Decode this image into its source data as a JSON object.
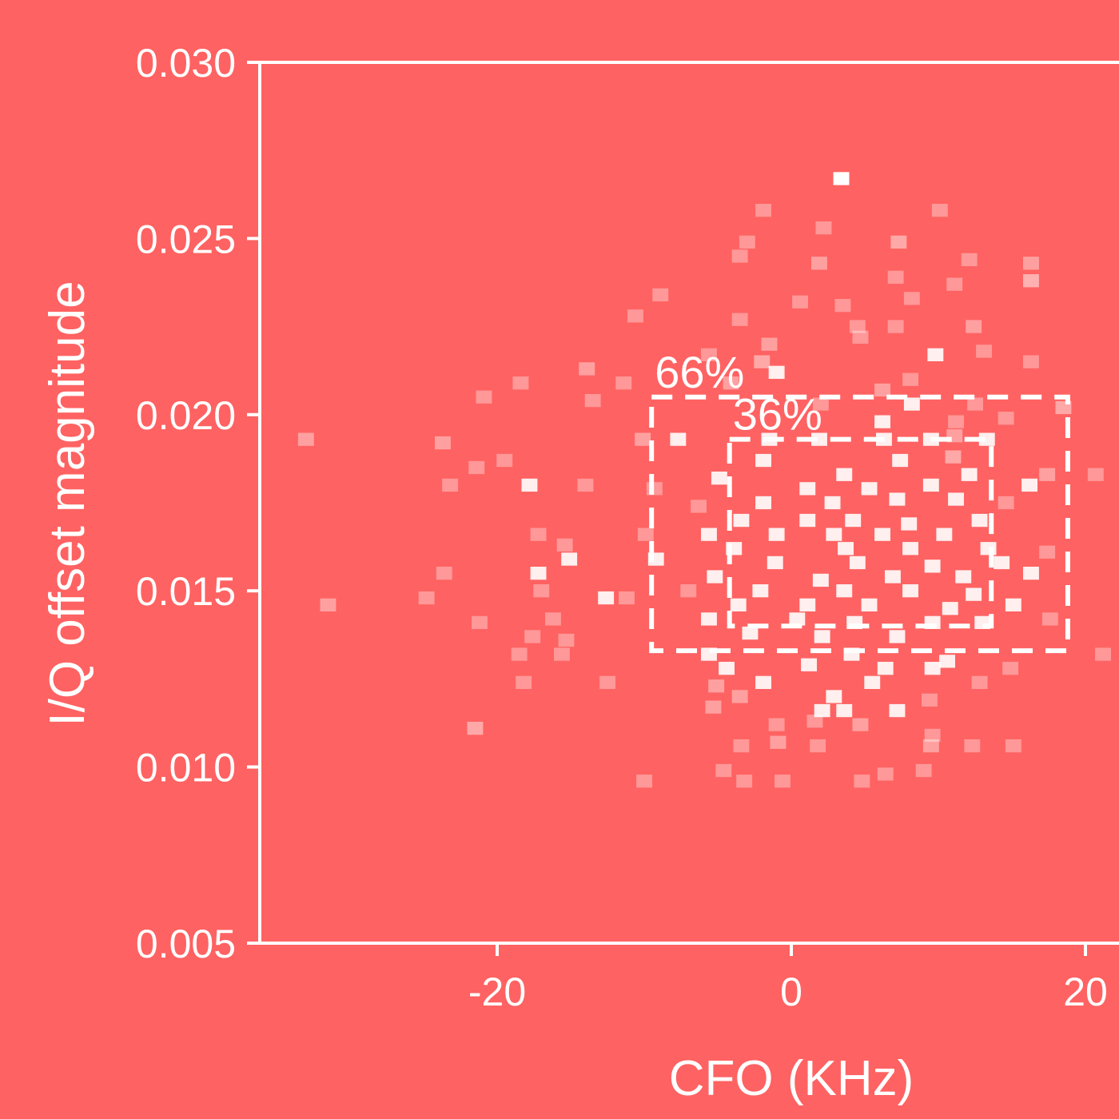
{
  "chart_data": {
    "type": "heatmap",
    "title": "",
    "xlabel": "CFO (KHz)",
    "ylabel": "I/Q offset magnitude",
    "xlim": [
      -33,
      23
    ],
    "ylim": [
      0.005,
      0.03
    ],
    "xticks": [
      -20,
      0,
      20
    ],
    "xtick_labels": [
      "-20",
      "0",
      "20"
    ],
    "yticks": [
      0.005,
      0.01,
      0.015,
      0.02,
      0.025,
      0.03
    ],
    "ytick_labels": [
      "0.005",
      "0.010",
      "0.015",
      "0.020",
      "0.025",
      "0.030"
    ],
    "grid": false,
    "colors": {
      "background": "#ff6262",
      "foreground": "#ffffff"
    },
    "regions": [
      {
        "label": "66%",
        "x": [
          -9.5,
          18.8
        ],
        "y": [
          0.0133,
          0.0205
        ]
      },
      {
        "label": "36%",
        "x": [
          -4.2,
          13.6
        ],
        "y": [
          0.014,
          0.0193
        ]
      }
    ],
    "bin_size": {
      "x": 1.08,
      "y": 0.00037
    },
    "points": [
      [
        3.4,
        0.0267,
        1.0
      ],
      [
        -33.0,
        0.0193,
        0.4
      ],
      [
        -31.5,
        0.0146,
        0.4
      ],
      [
        -1.9,
        0.0258,
        0.35
      ],
      [
        2.2,
        0.0253,
        0.35
      ],
      [
        10.1,
        0.0258,
        0.35
      ],
      [
        -3.0,
        0.0249,
        0.35
      ],
      [
        7.3,
        0.0249,
        0.45
      ],
      [
        -3.5,
        0.0245,
        0.35
      ],
      [
        1.9,
        0.0243,
        0.4
      ],
      [
        12.1,
        0.0244,
        0.35
      ],
      [
        16.3,
        0.0243,
        0.4
      ],
      [
        7.1,
        0.0239,
        0.35
      ],
      [
        11.1,
        0.0237,
        0.35
      ],
      [
        16.3,
        0.0238,
        0.5
      ],
      [
        -8.9,
        0.0234,
        0.35
      ],
      [
        0.6,
        0.0232,
        0.35
      ],
      [
        3.5,
        0.0231,
        0.35
      ],
      [
        8.2,
        0.0233,
        0.35
      ],
      [
        -10.6,
        0.0228,
        0.35
      ],
      [
        -3.5,
        0.0227,
        0.35
      ],
      [
        4.5,
        0.0225,
        0.35
      ],
      [
        7.1,
        0.0225,
        0.35
      ],
      [
        12.4,
        0.0225,
        0.4
      ],
      [
        -1.5,
        0.022,
        0.4
      ],
      [
        4.7,
        0.0222,
        0.35
      ],
      [
        -5.6,
        0.0217,
        0.35
      ],
      [
        -13.9,
        0.0213,
        0.4
      ],
      [
        -2.0,
        0.0215,
        0.45
      ],
      [
        9.8,
        0.0217,
        0.9
      ],
      [
        13.1,
        0.0218,
        0.35
      ],
      [
        16.3,
        0.0215,
        0.35
      ],
      [
        -18.4,
        0.0209,
        0.35
      ],
      [
        -11.4,
        0.0209,
        0.35
      ],
      [
        -4.1,
        0.0209,
        0.4
      ],
      [
        -1.0,
        0.0212,
        0.9
      ],
      [
        6.2,
        0.0207,
        0.4
      ],
      [
        8.1,
        0.021,
        0.35
      ],
      [
        -20.9,
        0.0205,
        0.35
      ],
      [
        -13.5,
        0.0204,
        0.35
      ],
      [
        2.0,
        0.0203,
        0.35
      ],
      [
        8.2,
        0.0203,
        0.9
      ],
      [
        12.5,
        0.0203,
        0.35
      ],
      [
        18.5,
        0.0202,
        0.45
      ],
      [
        6.2,
        0.0198,
        0.9
      ],
      [
        11.2,
        0.0198,
        0.35
      ],
      [
        14.6,
        0.0199,
        0.35
      ],
      [
        -23.7,
        0.0192,
        0.4
      ],
      [
        -10.1,
        0.0193,
        0.4
      ],
      [
        -7.7,
        0.0193,
        0.9
      ],
      [
        -1.5,
        0.0193,
        0.9
      ],
      [
        1.9,
        0.0193,
        0.9
      ],
      [
        6.3,
        0.0193,
        0.9
      ],
      [
        9.5,
        0.0193,
        0.9
      ],
      [
        11.1,
        0.0194,
        0.4
      ],
      [
        13.3,
        0.0193,
        0.9
      ],
      [
        -19.5,
        0.0187,
        0.35
      ],
      [
        -1.9,
        0.0187,
        0.9
      ],
      [
        7.4,
        0.0187,
        0.9
      ],
      [
        11.0,
        0.0188,
        0.45
      ],
      [
        -21.4,
        0.0185,
        0.35
      ],
      [
        -4.9,
        0.0182,
        0.9
      ],
      [
        3.6,
        0.0183,
        0.9
      ],
      [
        12.1,
        0.0183,
        0.9
      ],
      [
        17.4,
        0.0183,
        0.4
      ],
      [
        20.7,
        0.0183,
        0.35
      ],
      [
        -23.2,
        0.018,
        0.35
      ],
      [
        -17.8,
        0.018,
        0.9
      ],
      [
        -14.0,
        0.018,
        0.35
      ],
      [
        -9.3,
        0.0179,
        0.35
      ],
      [
        1.1,
        0.0179,
        0.9
      ],
      [
        5.3,
        0.0179,
        0.9
      ],
      [
        9.5,
        0.018,
        0.9
      ],
      [
        16.2,
        0.018,
        0.9
      ],
      [
        -6.3,
        0.0174,
        0.35
      ],
      [
        -1.9,
        0.0175,
        0.9
      ],
      [
        2.8,
        0.0175,
        0.9
      ],
      [
        7.2,
        0.0176,
        0.9
      ],
      [
        11.2,
        0.0176,
        0.9
      ],
      [
        14.6,
        0.0175,
        0.35
      ],
      [
        -3.4,
        0.017,
        0.9
      ],
      [
        1.1,
        0.017,
        0.9
      ],
      [
        4.2,
        0.017,
        0.9
      ],
      [
        8.0,
        0.0169,
        0.9
      ],
      [
        12.8,
        0.017,
        0.9
      ],
      [
        -17.2,
        0.0166,
        0.35
      ],
      [
        -9.9,
        0.0166,
        0.35
      ],
      [
        -5.6,
        0.0166,
        0.9
      ],
      [
        -1.0,
        0.0166,
        0.9
      ],
      [
        2.9,
        0.0166,
        0.9
      ],
      [
        6.2,
        0.0166,
        0.9
      ],
      [
        10.4,
        0.0166,
        0.9
      ],
      [
        -15.4,
        0.0163,
        0.35
      ],
      [
        -3.9,
        0.0162,
        0.9
      ],
      [
        3.7,
        0.0162,
        0.9
      ],
      [
        8.1,
        0.0162,
        0.9
      ],
      [
        13.4,
        0.0162,
        0.9
      ],
      [
        17.4,
        0.0161,
        0.35
      ],
      [
        -15.1,
        0.0159,
        0.9
      ],
      [
        -9.2,
        0.0159,
        0.9
      ],
      [
        -1.1,
        0.0158,
        0.9
      ],
      [
        4.5,
        0.0158,
        0.9
      ],
      [
        9.6,
        0.0157,
        0.9
      ],
      [
        14.3,
        0.0158,
        0.9
      ],
      [
        -23.6,
        0.0155,
        0.35
      ],
      [
        -17.2,
        0.0155,
        0.9
      ],
      [
        -5.2,
        0.0154,
        0.9
      ],
      [
        2.0,
        0.0153,
        0.9
      ],
      [
        6.9,
        0.0154,
        0.9
      ],
      [
        11.7,
        0.0154,
        0.9
      ],
      [
        16.3,
        0.0155,
        0.9
      ],
      [
        -17.0,
        0.015,
        0.35
      ],
      [
        -11.2,
        0.0148,
        0.35
      ],
      [
        -7.0,
        0.015,
        0.35
      ],
      [
        -2.1,
        0.015,
        0.9
      ],
      [
        3.6,
        0.015,
        0.9
      ],
      [
        8.1,
        0.015,
        0.9
      ],
      [
        12.4,
        0.0149,
        0.9
      ],
      [
        -24.8,
        0.0148,
        0.35
      ],
      [
        -12.6,
        0.0148,
        0.9
      ],
      [
        -3.6,
        0.0146,
        0.9
      ],
      [
        1.1,
        0.0146,
        0.9
      ],
      [
        5.3,
        0.0146,
        0.9
      ],
      [
        10.8,
        0.0145,
        0.9
      ],
      [
        15.1,
        0.0146,
        0.9
      ],
      [
        -21.2,
        0.0141,
        0.35
      ],
      [
        -16.2,
        0.0142,
        0.35
      ],
      [
        -5.6,
        0.0142,
        0.9
      ],
      [
        0.4,
        0.0142,
        0.9
      ],
      [
        4.3,
        0.0141,
        0.9
      ],
      [
        9.6,
        0.0141,
        0.9
      ],
      [
        13.0,
        0.0141,
        0.9
      ],
      [
        17.6,
        0.0142,
        0.35
      ],
      [
        -17.6,
        0.0137,
        0.35
      ],
      [
        -15.3,
        0.0136,
        0.35
      ],
      [
        -2.8,
        0.0138,
        0.9
      ],
      [
        2.1,
        0.0137,
        0.9
      ],
      [
        7.2,
        0.0137,
        0.9
      ],
      [
        -18.5,
        0.0132,
        0.35
      ],
      [
        -15.6,
        0.0132,
        0.35
      ],
      [
        -5.6,
        0.0132,
        0.9
      ],
      [
        4.1,
        0.0132,
        0.9
      ],
      [
        10.6,
        0.013,
        0.9
      ],
      [
        21.2,
        0.0132,
        0.35
      ],
      [
        -4.4,
        0.0128,
        0.9
      ],
      [
        1.2,
        0.0129,
        0.9
      ],
      [
        6.4,
        0.0128,
        0.9
      ],
      [
        9.6,
        0.0128,
        0.9
      ],
      [
        14.9,
        0.0128,
        0.35
      ],
      [
        -18.2,
        0.0124,
        0.35
      ],
      [
        -12.5,
        0.0124,
        0.35
      ],
      [
        -5.1,
        0.0123,
        0.4
      ],
      [
        -1.9,
        0.0124,
        0.9
      ],
      [
        5.5,
        0.0124,
        0.9
      ],
      [
        12.8,
        0.0124,
        0.35
      ],
      [
        -3.5,
        0.012,
        0.4
      ],
      [
        2.9,
        0.012,
        0.9
      ],
      [
        9.4,
        0.0119,
        0.35
      ],
      [
        -5.3,
        0.0117,
        0.4
      ],
      [
        2.1,
        0.0116,
        0.9
      ],
      [
        3.6,
        0.0116,
        0.9
      ],
      [
        7.2,
        0.0116,
        0.9
      ],
      [
        -1.0,
        0.0112,
        0.35
      ],
      [
        1.6,
        0.0113,
        0.35
      ],
      [
        -21.5,
        0.0111,
        0.45
      ],
      [
        -0.9,
        0.0107,
        0.4
      ],
      [
        4.7,
        0.0112,
        0.4
      ],
      [
        9.6,
        0.0109,
        0.35
      ],
      [
        -3.4,
        0.0106,
        0.35
      ],
      [
        1.8,
        0.0106,
        0.35
      ],
      [
        9.5,
        0.0106,
        0.4
      ],
      [
        12.3,
        0.0106,
        0.35
      ],
      [
        15.1,
        0.0106,
        0.35
      ],
      [
        -10.0,
        0.0096,
        0.35
      ],
      [
        -3.2,
        0.0096,
        0.35
      ],
      [
        -0.6,
        0.0096,
        0.35
      ],
      [
        4.8,
        0.0096,
        0.35
      ],
      [
        6.4,
        0.0098,
        0.35
      ],
      [
        -4.6,
        0.0099,
        0.35
      ],
      [
        9.0,
        0.0099,
        0.35
      ]
    ]
  }
}
